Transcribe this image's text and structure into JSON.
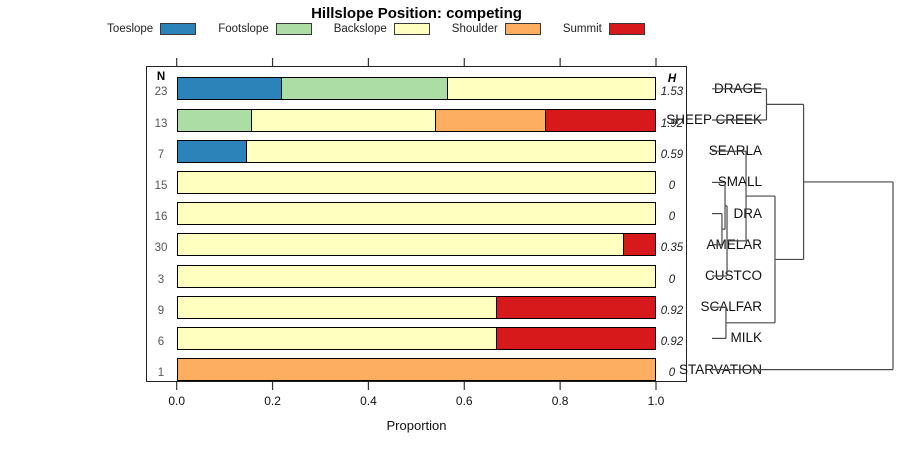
{
  "title": "Hillslope Position: competing",
  "legend": {
    "items": [
      {
        "label": "Toeslope",
        "color": "#2B83BA"
      },
      {
        "label": "Footslope",
        "color": "#ABDDA4"
      },
      {
        "label": "Backslope",
        "color": "#FFFFBF"
      },
      {
        "label": "Shoulder",
        "color": "#FDAE61"
      },
      {
        "label": "Summit",
        "color": "#D7191C"
      }
    ]
  },
  "columns": {
    "n_header": "N",
    "h_header": "H"
  },
  "axis": {
    "tick_labels": [
      "0.0",
      "0.2",
      "0.4",
      "0.6",
      "0.8",
      "1.0"
    ],
    "label": "Proportion"
  },
  "chart_data": {
    "type": "bar",
    "subtype": "horizontal-stacked-proportions-with-dendrogram",
    "title": "Hillslope Position: competing",
    "xlabel": "Proportion",
    "xlim": [
      0,
      1
    ],
    "x_ticks": [
      0.0,
      0.2,
      0.4,
      0.6,
      0.8,
      1.0
    ],
    "grid": false,
    "categories": [
      "Toeslope",
      "Footslope",
      "Backslope",
      "Shoulder",
      "Summit"
    ],
    "category_colors": {
      "Toeslope": "#2B83BA",
      "Footslope": "#ABDDA4",
      "Backslope": "#FFFFBF",
      "Shoulder": "#FDAE61",
      "Summit": "#D7191C"
    },
    "rows": [
      {
        "name": "DRAGE",
        "n": 23,
        "shannon_h": "1.53",
        "segments": [
          {
            "category": "Toeslope",
            "proportion": 0.2174
          },
          {
            "category": "Footslope",
            "proportion": 0.3478
          },
          {
            "category": "Backslope",
            "proportion": 0.4348
          }
        ]
      },
      {
        "name": "SHEEP CREEK",
        "n": 13,
        "shannon_h": "1.92",
        "segments": [
          {
            "category": "Footslope",
            "proportion": 0.1538
          },
          {
            "category": "Backslope",
            "proportion": 0.3846
          },
          {
            "category": "Shoulder",
            "proportion": 0.2308
          },
          {
            "category": "Summit",
            "proportion": 0.2308
          }
        ]
      },
      {
        "name": "SEARLA",
        "n": 7,
        "shannon_h": "0.59",
        "segments": [
          {
            "category": "Toeslope",
            "proportion": 0.1429
          },
          {
            "category": "Backslope",
            "proportion": 0.8571
          }
        ]
      },
      {
        "name": "SMALL",
        "n": 15,
        "shannon_h": "0",
        "segments": [
          {
            "category": "Backslope",
            "proportion": 1.0
          }
        ]
      },
      {
        "name": "DRA",
        "n": 16,
        "shannon_h": "0",
        "segments": [
          {
            "category": "Backslope",
            "proportion": 1.0
          }
        ]
      },
      {
        "name": "AMELAR",
        "n": 30,
        "shannon_h": "0.35",
        "segments": [
          {
            "category": "Backslope",
            "proportion": 0.9333
          },
          {
            "category": "Summit",
            "proportion": 0.0667
          }
        ]
      },
      {
        "name": "CUSTCO",
        "n": 3,
        "shannon_h": "0",
        "segments": [
          {
            "category": "Backslope",
            "proportion": 1.0
          }
        ]
      },
      {
        "name": "SCALFAR",
        "n": 9,
        "shannon_h": "0.92",
        "segments": [
          {
            "category": "Backslope",
            "proportion": 0.6667
          },
          {
            "category": "Summit",
            "proportion": 0.3333
          }
        ]
      },
      {
        "name": "MILK",
        "n": 6,
        "shannon_h": "0.92",
        "segments": [
          {
            "category": "Backslope",
            "proportion": 0.6667
          },
          {
            "category": "Summit",
            "proportion": 0.3333
          }
        ]
      },
      {
        "name": "STARVATION",
        "n": 1,
        "shannon_h": "0",
        "segments": [
          {
            "category": "Shoulder",
            "proportion": 1.0
          }
        ]
      }
    ],
    "dendrogram": {
      "orientation": "right",
      "leaf_order": [
        "DRAGE",
        "SHEEP CREEK",
        "SEARLA",
        "SMALL",
        "DRA",
        "AMELAR",
        "CUSTCO",
        "SCALFAR",
        "MILK",
        "STARVATION"
      ],
      "merges": [
        {
          "id": "M1",
          "children": [
            "DRA",
            "AMELAR"
          ],
          "height": 0.055
        },
        {
          "id": "M2",
          "children": [
            "SMALL",
            "M1"
          ],
          "height": 0.072
        },
        {
          "id": "M3",
          "children": [
            "M2",
            "CUSTCO"
          ],
          "height": 0.083
        },
        {
          "id": "M4",
          "children": [
            "SEARLA",
            "M3"
          ],
          "height": 0.188
        },
        {
          "id": "M5",
          "children": [
            "SCALFAR",
            "MILK"
          ],
          "height": 0.077
        },
        {
          "id": "M6",
          "children": [
            "M4",
            "M5"
          ],
          "height": 0.348
        },
        {
          "id": "M7",
          "children": [
            "DRAGE",
            "SHEEP CREEK"
          ],
          "height": 0.301
        },
        {
          "id": "M8",
          "children": [
            "M7",
            "M6"
          ],
          "height": 0.506
        },
        {
          "id": "M9",
          "children": [
            "M8",
            "STARVATION"
          ],
          "height": 1.0
        }
      ]
    }
  }
}
